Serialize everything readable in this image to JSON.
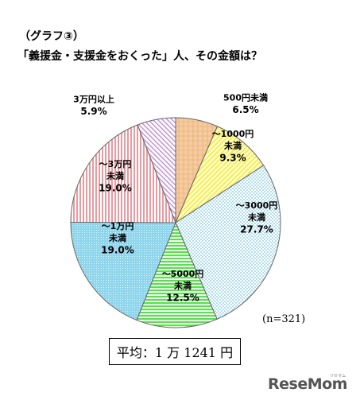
{
  "header": {
    "graph_label": "（グラフ③）",
    "title": "「義援金・支援金をおくった」人、その金額は？"
  },
  "chart_data": {
    "type": "pie",
    "title": "「義援金・支援金をおくった」人、その金額は？",
    "categories": [
      "500円未満",
      "～1000円未満",
      "～3000円未満",
      "～5000円未満",
      "～1万円未満",
      "～3万円未満",
      "3万円以上"
    ],
    "values": [
      6.5,
      9.3,
      27.7,
      12.5,
      19.0,
      19.0,
      5.9
    ],
    "unit": "%",
    "slices": [
      {
        "label_lines": [
          "500円未満"
        ],
        "value_label": "6.5%",
        "color": "#f5cba0",
        "pattern": "checker"
      },
      {
        "label_lines": [
          "～1000円",
          "未満"
        ],
        "value_label": "9.3%",
        "color": "#f7f15a",
        "pattern": "diagonal-rising"
      },
      {
        "label_lines": [
          "～3000円",
          "未満"
        ],
        "value_label": "27.7%",
        "color": "#c7eef5",
        "pattern": "dots"
      },
      {
        "label_lines": [
          "～5000円",
          "未満"
        ],
        "value_label": "12.5%",
        "color": "#58e04f",
        "pattern": "horizontal"
      },
      {
        "label_lines": [
          "～1万円",
          "未満"
        ],
        "value_label": "19.0%",
        "color": "#8fd5ec",
        "pattern": "dense-dots"
      },
      {
        "label_lines": [
          "～3万円",
          "未満"
        ],
        "value_label": "19.0%",
        "color": "#f4c2c2",
        "pattern": "vertical"
      },
      {
        "label_lines": [
          "3万円以上"
        ],
        "value_label": "5.9%",
        "color": "#c79ad9",
        "pattern": "diagonal-falling"
      }
    ],
    "start_angle_deg": 0,
    "direction": "clockwise"
  },
  "note": {
    "n": "(n=321)"
  },
  "average": {
    "text": "平均：1 万 1241 円"
  },
  "logo": {
    "text": "ReseMom",
    "small_text": "リセマム"
  }
}
